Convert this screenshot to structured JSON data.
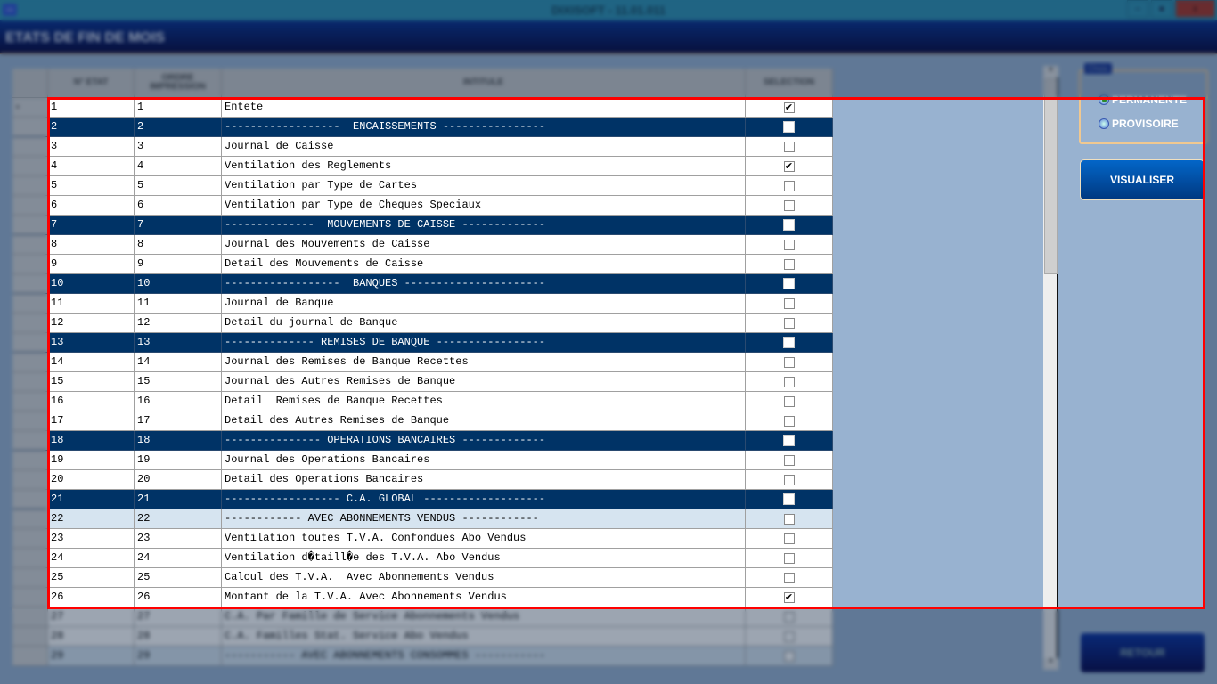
{
  "window": {
    "title": "DIXISOFT - 11.01.011",
    "minimize": "–",
    "restore": "●",
    "close": "x",
    "app_icon": "app-icon"
  },
  "header": {
    "title": "ETATS DE FIN DE MOIS"
  },
  "grid": {
    "columns": [
      "N° ETAT",
      "ORDRE IMPRESSION",
      "INTITULE",
      "SELECTION"
    ],
    "current_row_marker": "▸",
    "rows": [
      {
        "n": "1",
        "o": "1",
        "t": "Entete",
        "sel": true,
        "type": "normal"
      },
      {
        "n": "2",
        "o": "2",
        "t": "------------------  ENCAISSEMENTS ----------------",
        "sel": false,
        "type": "section"
      },
      {
        "n": "3",
        "o": "3",
        "t": "Journal de Caisse",
        "sel": false,
        "type": "normal"
      },
      {
        "n": "4",
        "o": "4",
        "t": "Ventilation des Reglements",
        "sel": true,
        "type": "normal"
      },
      {
        "n": "5",
        "o": "5",
        "t": "Ventilation par Type de Cartes",
        "sel": false,
        "type": "normal"
      },
      {
        "n": "6",
        "o": "6",
        "t": "Ventilation par Type de Cheques Speciaux",
        "sel": false,
        "type": "normal"
      },
      {
        "n": "7",
        "o": "7",
        "t": "--------------  MOUVEMENTS DE CAISSE -------------",
        "sel": false,
        "type": "section"
      },
      {
        "n": "8",
        "o": "8",
        "t": "Journal des Mouvements de Caisse",
        "sel": false,
        "type": "normal"
      },
      {
        "n": "9",
        "o": "9",
        "t": "Detail des Mouvements de Caisse",
        "sel": false,
        "type": "normal"
      },
      {
        "n": "10",
        "o": "10",
        "t": "------------------  BANQUES ----------------------",
        "sel": false,
        "type": "section"
      },
      {
        "n": "11",
        "o": "11",
        "t": "Journal de Banque",
        "sel": false,
        "type": "normal"
      },
      {
        "n": "12",
        "o": "12",
        "t": "Detail du journal de Banque",
        "sel": false,
        "type": "normal"
      },
      {
        "n": "13",
        "o": "13",
        "t": "-------------- REMISES DE BANQUE -----------------",
        "sel": false,
        "type": "section"
      },
      {
        "n": "14",
        "o": "14",
        "t": "Journal des Remises de Banque Recettes",
        "sel": false,
        "type": "normal"
      },
      {
        "n": "15",
        "o": "15",
        "t": "Journal des Autres Remises de Banque",
        "sel": false,
        "type": "normal"
      },
      {
        "n": "16",
        "o": "16",
        "t": "Detail  Remises de Banque Recettes",
        "sel": false,
        "type": "normal"
      },
      {
        "n": "17",
        "o": "17",
        "t": "Detail des Autres Remises de Banque",
        "sel": false,
        "type": "normal"
      },
      {
        "n": "18",
        "o": "18",
        "t": "--------------- OPERATIONS BANCAIRES -------------",
        "sel": false,
        "type": "section"
      },
      {
        "n": "19",
        "o": "19",
        "t": "Journal des Operations Bancaires",
        "sel": false,
        "type": "normal"
      },
      {
        "n": "20",
        "o": "20",
        "t": "Detail des Operations Bancaires",
        "sel": false,
        "type": "normal"
      },
      {
        "n": "21",
        "o": "21",
        "t": "------------------ C.A. GLOBAL -------------------",
        "sel": false,
        "type": "section"
      },
      {
        "n": "22",
        "o": "22",
        "t": "------------ AVEC ABONNEMENTS VENDUS ------------",
        "sel": false,
        "type": "highlight"
      },
      {
        "n": "23",
        "o": "23",
        "t": "Ventilation toutes T.V.A. Confondues Abo Vendus",
        "sel": false,
        "type": "normal"
      },
      {
        "n": "24",
        "o": "24",
        "t": "Ventilation d�taill�e des T.V.A. Abo Vendus",
        "sel": false,
        "type": "normal"
      },
      {
        "n": "25",
        "o": "25",
        "t": "Calcul des T.V.A.  Avec Abonnements Vendus",
        "sel": false,
        "type": "normal"
      },
      {
        "n": "26",
        "o": "26",
        "t": "Montant de la T.V.A. Avec Abonnements Vendus",
        "sel": true,
        "type": "normal"
      },
      {
        "n": "27",
        "o": "27",
        "t": "C.A. Par Famille de Service Abonnements Vendus",
        "sel": false,
        "type": "normal"
      },
      {
        "n": "28",
        "o": "28",
        "t": "C.A. Familles Stat. Service Abo Vendus",
        "sel": false,
        "type": "normal"
      },
      {
        "n": "29",
        "o": "29",
        "t": "----------- AVEC ABONNEMENTS CONSOMMES -----------",
        "sel": false,
        "type": "highlight"
      }
    ]
  },
  "choix": {
    "label": "Choix",
    "options": [
      {
        "label": "PERMANENTE",
        "selected": true
      },
      {
        "label": "PROVISOIRE",
        "selected": false
      }
    ]
  },
  "buttons": {
    "visualiser": "VISUALISER",
    "retour": "RETOUR"
  }
}
